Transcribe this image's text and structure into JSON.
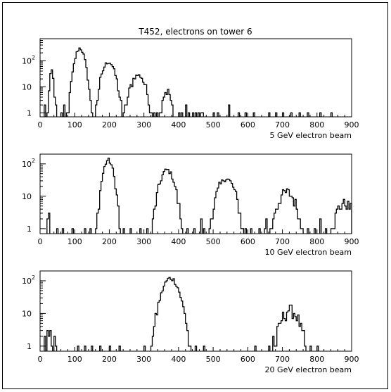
{
  "figure": {
    "title": "T452, electrons on tower 6"
  },
  "chart_data": [
    {
      "type": "histogram",
      "xlabel": "5 GeV electron beam",
      "xlim": [
        0,
        900
      ],
      "ylim": [
        0.7,
        700
      ],
      "yscale": "log",
      "xticks": [
        "0",
        "100",
        "200",
        "300",
        "400",
        "500",
        "600",
        "700",
        "800",
        "900"
      ],
      "yticks": [
        {
          "value": 1,
          "label": "1"
        },
        {
          "value": 10,
          "label": "10"
        },
        {
          "value": 100,
          "label": "10",
          "sup": "2"
        }
      ],
      "peaks": [
        {
          "center": 33,
          "height": 40,
          "sigma": 4
        },
        {
          "center": 115,
          "height": 300,
          "sigma": 10
        },
        {
          "center": 198,
          "height": 90,
          "sigma": 13
        },
        {
          "center": 283,
          "height": 28,
          "sigma": 15
        },
        {
          "center": 365,
          "height": 7,
          "sigma": 10
        }
      ],
      "sparse_counts": [
        {
          "x": 15,
          "y": 2
        },
        {
          "x": 26,
          "y": 3
        },
        {
          "x": 45,
          "y": 2
        },
        {
          "x": 60,
          "y": 1
        },
        {
          "x": 70,
          "y": 2
        },
        {
          "x": 78,
          "y": 1
        },
        {
          "x": 150,
          "y": 1
        },
        {
          "x": 160,
          "y": 1
        },
        {
          "x": 240,
          "y": 1
        },
        {
          "x": 245,
          "y": 2
        },
        {
          "x": 330,
          "y": 1
        },
        {
          "x": 338,
          "y": 1
        },
        {
          "x": 400,
          "y": 1
        },
        {
          "x": 410,
          "y": 1
        },
        {
          "x": 420,
          "y": 2
        },
        {
          "x": 430,
          "y": 1
        },
        {
          "x": 440,
          "y": 1
        },
        {
          "x": 448,
          "y": 1
        },
        {
          "x": 458,
          "y": 1
        },
        {
          "x": 465,
          "y": 1
        },
        {
          "x": 470,
          "y": 1
        },
        {
          "x": 500,
          "y": 1
        },
        {
          "x": 515,
          "y": 1
        },
        {
          "x": 545,
          "y": 2
        },
        {
          "x": 575,
          "y": 1
        },
        {
          "x": 595,
          "y": 1
        },
        {
          "x": 618,
          "y": 1
        },
        {
          "x": 660,
          "y": 1
        },
        {
          "x": 680,
          "y": 1
        },
        {
          "x": 700,
          "y": 1
        },
        {
          "x": 725,
          "y": 1
        },
        {
          "x": 750,
          "y": 1
        },
        {
          "x": 775,
          "y": 1
        },
        {
          "x": 810,
          "y": 1
        },
        {
          "x": 840,
          "y": 1
        }
      ]
    },
    {
      "type": "histogram",
      "xlabel": "10 GeV electron beam",
      "xlim": [
        0,
        900
      ],
      "ylim": [
        0.7,
        200
      ],
      "yscale": "log",
      "xticks": [
        "0",
        "100",
        "200",
        "300",
        "400",
        "500",
        "600",
        "700",
        "800",
        "900"
      ],
      "yticks": [
        {
          "value": 1,
          "label": "1"
        },
        {
          "value": 10,
          "label": "10"
        },
        {
          "value": 100,
          "label": "10",
          "sup": "2"
        }
      ],
      "peaks": [
        {
          "center": 197,
          "height": 130,
          "sigma": 11
        },
        {
          "center": 367,
          "height": 65,
          "sigma": 15
        },
        {
          "center": 538,
          "height": 35,
          "sigma": 18
        },
        {
          "center": 712,
          "height": 13,
          "sigma": 20
        },
        {
          "center": 880,
          "height": 6,
          "sigma": 20
        }
      ],
      "sparse_counts": [
        {
          "x": 20,
          "y": 2
        },
        {
          "x": 25,
          "y": 3
        },
        {
          "x": 50,
          "y": 1
        },
        {
          "x": 65,
          "y": 1
        },
        {
          "x": 95,
          "y": 1
        },
        {
          "x": 130,
          "y": 1
        },
        {
          "x": 145,
          "y": 1
        },
        {
          "x": 165,
          "y": 1
        },
        {
          "x": 225,
          "y": 1
        },
        {
          "x": 240,
          "y": 1
        },
        {
          "x": 260,
          "y": 1
        },
        {
          "x": 290,
          "y": 1
        },
        {
          "x": 310,
          "y": 1
        },
        {
          "x": 325,
          "y": 2
        },
        {
          "x": 410,
          "y": 1
        },
        {
          "x": 425,
          "y": 1
        },
        {
          "x": 445,
          "y": 1
        },
        {
          "x": 465,
          "y": 2
        },
        {
          "x": 475,
          "y": 1
        },
        {
          "x": 595,
          "y": 1
        },
        {
          "x": 610,
          "y": 1
        },
        {
          "x": 635,
          "y": 1
        },
        {
          "x": 650,
          "y": 1
        },
        {
          "x": 655,
          "y": 2
        },
        {
          "x": 775,
          "y": 1
        },
        {
          "x": 795,
          "y": 1
        },
        {
          "x": 810,
          "y": 2
        },
        {
          "x": 825,
          "y": 1
        }
      ]
    },
    {
      "type": "histogram",
      "xlabel": "20 GeV electron beam",
      "xlim": [
        0,
        900
      ],
      "ylim": [
        0.7,
        200
      ],
      "yscale": "log",
      "xticks": [
        "0",
        "100",
        "200",
        "300",
        "400",
        "500",
        "600",
        "700",
        "800",
        "900"
      ],
      "yticks": [
        {
          "value": 1,
          "label": "1"
        },
        {
          "value": 10,
          "label": "10"
        },
        {
          "value": 100,
          "label": "10",
          "sup": "2"
        }
      ],
      "peaks": [
        {
          "center": 377,
          "height": 120,
          "sigma": 18
        },
        {
          "center": 722,
          "height": 13,
          "sigma": 20
        }
      ],
      "sparse_counts": [
        {
          "x": 15,
          "y": 2
        },
        {
          "x": 20,
          "y": 3
        },
        {
          "x": 25,
          "y": 2
        },
        {
          "x": 30,
          "y": 3
        },
        {
          "x": 35,
          "y": 1
        },
        {
          "x": 40,
          "y": 2
        },
        {
          "x": 45,
          "y": 1
        },
        {
          "x": 110,
          "y": 1
        },
        {
          "x": 130,
          "y": 1
        },
        {
          "x": 150,
          "y": 1
        },
        {
          "x": 175,
          "y": 1
        },
        {
          "x": 200,
          "y": 1
        },
        {
          "x": 230,
          "y": 1
        },
        {
          "x": 300,
          "y": 1
        },
        {
          "x": 330,
          "y": 1
        },
        {
          "x": 338,
          "y": 2
        },
        {
          "x": 425,
          "y": 1
        },
        {
          "x": 432,
          "y": 1
        },
        {
          "x": 450,
          "y": 1
        },
        {
          "x": 475,
          "y": 1
        },
        {
          "x": 620,
          "y": 1
        },
        {
          "x": 660,
          "y": 1
        },
        {
          "x": 672,
          "y": 2
        },
        {
          "x": 780,
          "y": 1
        },
        {
          "x": 800,
          "y": 1
        }
      ]
    }
  ]
}
